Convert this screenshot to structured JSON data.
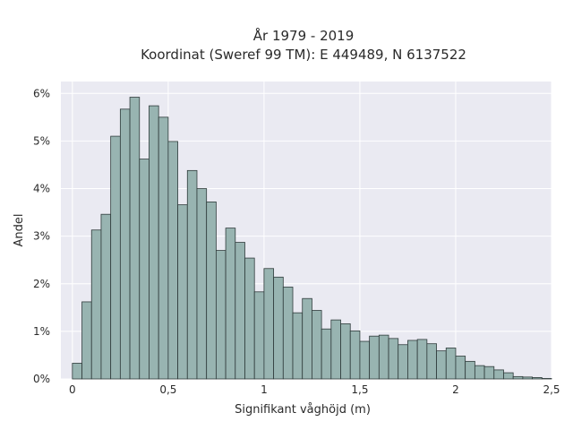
{
  "chart_data": {
    "type": "bar",
    "title_line1": "År 1979 - 2019",
    "title_line2": "Koordinat (Sweref 99 TM): E 449489, N 6137522",
    "xlabel": "Signifikant våghöjd (m)",
    "ylabel": "Andel",
    "xlim": [
      -0.06,
      2.5
    ],
    "ylim": [
      0,
      6.25
    ],
    "x_ticks": [
      0,
      0.5,
      1,
      1.5,
      2,
      2.5
    ],
    "x_tick_labels": [
      "0",
      "0,5",
      "1",
      "1,5",
      "2",
      "2,5"
    ],
    "y_ticks": [
      0,
      1,
      2,
      3,
      4,
      5,
      6
    ],
    "y_tick_labels": [
      "0%",
      "1%",
      "2%",
      "3%",
      "4%",
      "5%",
      "6%"
    ],
    "grid": true,
    "bin_width": 0.05,
    "bin_start": 0.025,
    "values": [
      0.33,
      1.62,
      3.13,
      3.46,
      5.1,
      5.67,
      5.92,
      4.62,
      5.74,
      5.5,
      4.99,
      3.66,
      4.38,
      4.0,
      3.72,
      2.7,
      3.17,
      2.87,
      2.54,
      1.83,
      2.32,
      2.14,
      1.93,
      1.39,
      1.69,
      1.44,
      1.05,
      1.24,
      1.16,
      1.01,
      0.79,
      0.9,
      0.92,
      0.85,
      0.72,
      0.81,
      0.83,
      0.74,
      0.59,
      0.65,
      0.48,
      0.37,
      0.28,
      0.26,
      0.19,
      0.13,
      0.05,
      0.04,
      0.03,
      0.01
    ],
    "colors": {
      "bar_fill": "#98b4b1",
      "bar_stroke": "#2f3b3b",
      "plot_background": "#eaeaf2",
      "grid": "#ffffff"
    }
  }
}
